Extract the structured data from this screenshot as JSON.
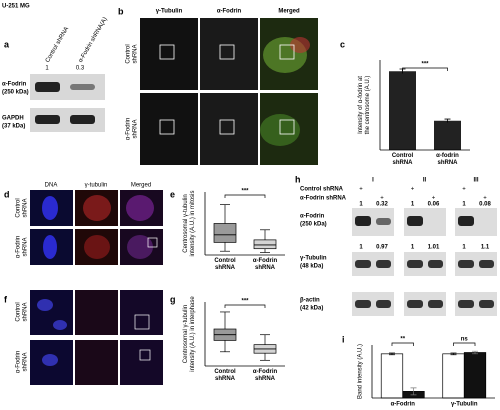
{
  "header": "U-251 MG",
  "panel_a": {
    "label": "a",
    "lanes": [
      "Control shRNA",
      "α-Fodrin shRNA(A)"
    ],
    "ratios": [
      "1",
      "0.3"
    ],
    "rows": [
      {
        "name": "α-Fodrin",
        "size": "(250 kDa)"
      },
      {
        "name": "GAPDH",
        "size": "(37 kDa)"
      }
    ]
  },
  "panel_b": {
    "label": "b",
    "columns": [
      "γ-Tubulin",
      "α-Fodrin",
      "Merged"
    ],
    "rows": [
      [
        "Control",
        "shRNA"
      ],
      [
        "α-Fodrin",
        "shRNA"
      ]
    ]
  },
  "panel_c": {
    "label": "c",
    "type": "bar",
    "ylabel": [
      "Intensity of α-fodrin at",
      "the centrosome (A.U.)"
    ],
    "categories": [
      [
        "Control",
        "shRNA"
      ],
      [
        "α-fodrin",
        "shRNA"
      ]
    ],
    "values": [
      140,
      52
    ],
    "errors": [
      4,
      3
    ],
    "color": "#222",
    "ylim": [
      0,
      160
    ],
    "significance": "***"
  },
  "panel_d": {
    "label": "d",
    "columns": [
      "DNA",
      "γ-tubulin",
      "Merged"
    ],
    "rows": [
      [
        "Control",
        "shRNA"
      ],
      [
        "α-Fodrin",
        "shRNA"
      ]
    ]
  },
  "panel_e": {
    "label": "e",
    "type": "boxplot",
    "ylabel": [
      "Centrosomal γ-tubulin",
      "intensity (A.U.) in mitosis"
    ],
    "categories": [
      [
        "Control",
        "shRNA"
      ],
      [
        "α-Fodrin",
        "shRNA"
      ]
    ],
    "boxes": [
      {
        "min": 3,
        "q1": 10,
        "median": 16,
        "q3": 25,
        "max": 40
      },
      {
        "min": 2,
        "q1": 5,
        "median": 8,
        "q3": 12,
        "max": 20
      }
    ],
    "colors": [
      "#9a9a9a",
      "#d4d4d4"
    ],
    "ylim": [
      0,
      50
    ],
    "significance": "***"
  },
  "panel_f": {
    "label": "f",
    "rows": [
      [
        "Control",
        "shRNA"
      ],
      [
        "α-Fodrin",
        "shRNA"
      ]
    ]
  },
  "panel_g": {
    "label": "g",
    "type": "boxplot",
    "ylabel": [
      "Centrosomal γ-tubulin",
      "intensity (A.U.) in interphase"
    ],
    "categories": [
      [
        "Control",
        "shRNA"
      ],
      [
        "α-Fodrin",
        "shRNA"
      ]
    ],
    "boxes": [
      {
        "min": 10,
        "q1": 18,
        "median": 22,
        "q3": 26,
        "max": 38
      },
      {
        "min": 4,
        "q1": 9,
        "median": 12,
        "q3": 15,
        "max": 22
      }
    ],
    "colors": [
      "#9a9a9a",
      "#d4d4d4"
    ],
    "ylim": [
      0,
      45
    ],
    "significance": "***"
  },
  "panel_h": {
    "label": "h",
    "conditions": [
      "Control shRNA",
      "α-Fodrin shRNA"
    ],
    "groups": [
      {
        "name": "I",
        "control": "+",
        "knockdown": "+",
        "fodrin": [
          "1",
          "0.32"
        ],
        "tubulin": [
          "1",
          "0.97"
        ]
      },
      {
        "name": "II",
        "control": "+",
        "knockdown": "+",
        "fodrin": [
          "1",
          "0.06"
        ],
        "tubulin": [
          "1",
          "1.01"
        ]
      },
      {
        "name": "III",
        "control": "+",
        "knockdown": "+",
        "fodrin": [
          "1",
          "0.08"
        ],
        "tubulin": [
          "1",
          "1.1"
        ]
      }
    ],
    "rows": [
      {
        "name": "α-Fodrin",
        "size": "(250 kDa)"
      },
      {
        "name": "γ-Tubulin",
        "size": "(48 kDa)"
      },
      {
        "name": "β-actin",
        "size": "(42 kDa)"
      }
    ]
  },
  "panel_i": {
    "label": "i",
    "type": "bar",
    "ylabel": "Band intensity (A.U.)",
    "categories": [
      "α-Fodrin",
      "γ-Tubulin"
    ],
    "series": [
      {
        "color": "#ffffff",
        "values": [
          1,
          1
        ],
        "errors": [
          0.02,
          0.02
        ]
      },
      {
        "color": "#111111",
        "values": [
          0.15,
          1.03
        ],
        "errors": [
          0.08,
          0.03
        ]
      }
    ],
    "ylim": [
      0,
      1.2
    ],
    "significance": [
      "**",
      "ns"
    ]
  }
}
